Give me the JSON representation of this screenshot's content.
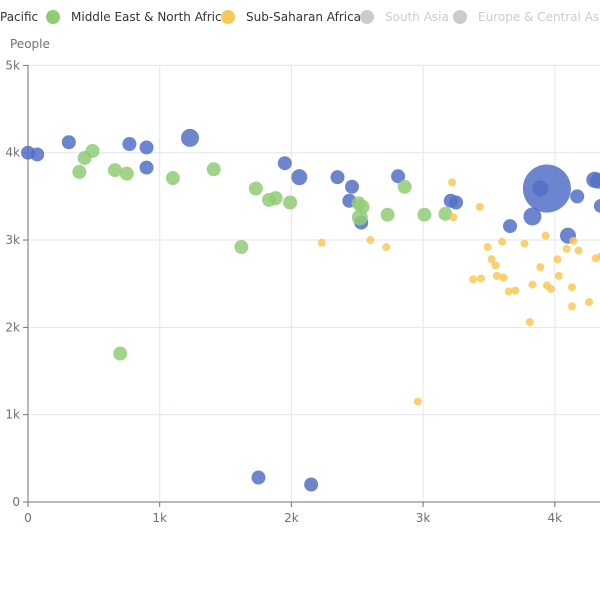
{
  "chart_data": {
    "type": "scatter",
    "title": "",
    "xlabel": "",
    "ylabel": "People",
    "xlim": [
      0,
      4300
    ],
    "ylim": [
      0,
      5000
    ],
    "x_ticks": [
      {
        "value": 0,
        "label": "0"
      },
      {
        "value": 1000,
        "label": "1k"
      },
      {
        "value": 2000,
        "label": "2k"
      },
      {
        "value": 3000,
        "label": "3k"
      },
      {
        "value": 4000,
        "label": "4k"
      }
    ],
    "y_ticks": [
      {
        "value": 0,
        "label": "0"
      },
      {
        "value": 1000,
        "label": "1k"
      },
      {
        "value": 2000,
        "label": "2k"
      },
      {
        "value": 3000,
        "label": "3k"
      },
      {
        "value": 4000,
        "label": "4k"
      },
      {
        "value": 5000,
        "label": "5k"
      }
    ],
    "grid": true,
    "legend": {
      "placement": "top",
      "items": [
        {
          "label": "Pacific",
          "color": "#5470c6",
          "active": true,
          "partial": true
        },
        {
          "label": "Middle East & North Africa",
          "color": "#91cc75",
          "active": true
        },
        {
          "label": "Sub-Saharan Africa",
          "color": "#fac858",
          "active": true
        },
        {
          "label": "South Asia",
          "color": "#cccccc",
          "active": false
        },
        {
          "label": "Europe & Central Asia",
          "color": "#cccccc",
          "active": false
        }
      ]
    },
    "series": [
      {
        "color": "#5470c6",
        "opacity": 0.85,
        "points": [
          {
            "x": 0,
            "y": 4000,
            "r": 7
          },
          {
            "x": 70,
            "y": 3980,
            "r": 7
          },
          {
            "x": 310,
            "y": 4120,
            "r": 7
          },
          {
            "x": 770,
            "y": 4100,
            "r": 7
          },
          {
            "x": 900,
            "y": 4060,
            "r": 7
          },
          {
            "x": 900,
            "y": 3830,
            "r": 7
          },
          {
            "x": 1230,
            "y": 4170,
            "r": 9
          },
          {
            "x": 1750,
            "y": 280,
            "r": 7
          },
          {
            "x": 1950,
            "y": 3880,
            "r": 7
          },
          {
            "x": 2060,
            "y": 3720,
            "r": 8
          },
          {
            "x": 2150,
            "y": 200,
            "r": 7
          },
          {
            "x": 2350,
            "y": 3720,
            "r": 7
          },
          {
            "x": 2440,
            "y": 3450,
            "r": 7
          },
          {
            "x": 2460,
            "y": 3610,
            "r": 7
          },
          {
            "x": 2530,
            "y": 3200,
            "r": 7
          },
          {
            "x": 2810,
            "y": 3730,
            "r": 7
          },
          {
            "x": 3210,
            "y": 3450,
            "r": 7
          },
          {
            "x": 3250,
            "y": 3430,
            "r": 7
          },
          {
            "x": 3660,
            "y": 3160,
            "r": 7
          },
          {
            "x": 3830,
            "y": 3270,
            "r": 9
          },
          {
            "x": 3890,
            "y": 3590,
            "r": 8
          },
          {
            "x": 3940,
            "y": 3590,
            "r": 24
          },
          {
            "x": 4100,
            "y": 3050,
            "r": 8
          },
          {
            "x": 4170,
            "y": 3500,
            "r": 7
          },
          {
            "x": 4300,
            "y": 3690,
            "r": 8
          },
          {
            "x": 4330,
            "y": 3680,
            "r": 8
          },
          {
            "x": 4350,
            "y": 3390,
            "r": 7
          }
        ]
      },
      {
        "color": "#91cc75",
        "opacity": 0.85,
        "points": [
          {
            "x": 390,
            "y": 3780,
            "r": 7
          },
          {
            "x": 430,
            "y": 3940,
            "r": 7
          },
          {
            "x": 490,
            "y": 4020,
            "r": 7
          },
          {
            "x": 660,
            "y": 3800,
            "r": 7
          },
          {
            "x": 700,
            "y": 1700,
            "r": 7
          },
          {
            "x": 750,
            "y": 3760,
            "r": 7
          },
          {
            "x": 1100,
            "y": 3710,
            "r": 7
          },
          {
            "x": 1410,
            "y": 3810,
            "r": 7
          },
          {
            "x": 1620,
            "y": 2920,
            "r": 7
          },
          {
            "x": 1730,
            "y": 3590,
            "r": 7
          },
          {
            "x": 1830,
            "y": 3460,
            "r": 7
          },
          {
            "x": 1880,
            "y": 3480,
            "r": 7
          },
          {
            "x": 1990,
            "y": 3430,
            "r": 7
          },
          {
            "x": 2510,
            "y": 3420,
            "r": 7
          },
          {
            "x": 2520,
            "y": 3260,
            "r": 8
          },
          {
            "x": 2540,
            "y": 3380,
            "r": 7
          },
          {
            "x": 2730,
            "y": 3290,
            "r": 7
          },
          {
            "x": 2860,
            "y": 3610,
            "r": 7
          },
          {
            "x": 3010,
            "y": 3290,
            "r": 7
          },
          {
            "x": 3170,
            "y": 3300,
            "r": 7
          }
        ]
      },
      {
        "color": "#fac858",
        "opacity": 0.85,
        "points": [
          {
            "x": 2230,
            "y": 2970,
            "r": 4
          },
          {
            "x": 2600,
            "y": 3000,
            "r": 4
          },
          {
            "x": 2720,
            "y": 2920,
            "r": 4
          },
          {
            "x": 2960,
            "y": 1150,
            "r": 4
          },
          {
            "x": 3220,
            "y": 3660,
            "r": 4
          },
          {
            "x": 3230,
            "y": 3260,
            "r": 4
          },
          {
            "x": 3380,
            "y": 2550,
            "r": 4
          },
          {
            "x": 3430,
            "y": 3380,
            "r": 4
          },
          {
            "x": 3440,
            "y": 2560,
            "r": 4
          },
          {
            "x": 3490,
            "y": 2920,
            "r": 4
          },
          {
            "x": 3520,
            "y": 2780,
            "r": 4
          },
          {
            "x": 3550,
            "y": 2710,
            "r": 4
          },
          {
            "x": 3560,
            "y": 2590,
            "r": 4
          },
          {
            "x": 3600,
            "y": 2980,
            "r": 4
          },
          {
            "x": 3610,
            "y": 2570,
            "r": 4
          },
          {
            "x": 3650,
            "y": 2410,
            "r": 4
          },
          {
            "x": 3700,
            "y": 2420,
            "r": 4
          },
          {
            "x": 3770,
            "y": 2960,
            "r": 4
          },
          {
            "x": 3810,
            "y": 2060,
            "r": 4
          },
          {
            "x": 3830,
            "y": 2490,
            "r": 4
          },
          {
            "x": 3890,
            "y": 2690,
            "r": 4
          },
          {
            "x": 3930,
            "y": 3050,
            "r": 4
          },
          {
            "x": 3940,
            "y": 2480,
            "r": 4
          },
          {
            "x": 3970,
            "y": 2440,
            "r": 4
          },
          {
            "x": 4020,
            "y": 2780,
            "r": 4
          },
          {
            "x": 4030,
            "y": 2590,
            "r": 4
          },
          {
            "x": 4090,
            "y": 2900,
            "r": 4
          },
          {
            "x": 4130,
            "y": 2240,
            "r": 4
          },
          {
            "x": 4130,
            "y": 2460,
            "r": 4
          },
          {
            "x": 4140,
            "y": 2990,
            "r": 4
          },
          {
            "x": 4180,
            "y": 2880,
            "r": 4
          },
          {
            "x": 4260,
            "y": 2290,
            "r": 4
          },
          {
            "x": 4310,
            "y": 2790,
            "r": 4
          },
          {
            "x": 4350,
            "y": 2810,
            "r": 4
          }
        ]
      }
    ]
  }
}
